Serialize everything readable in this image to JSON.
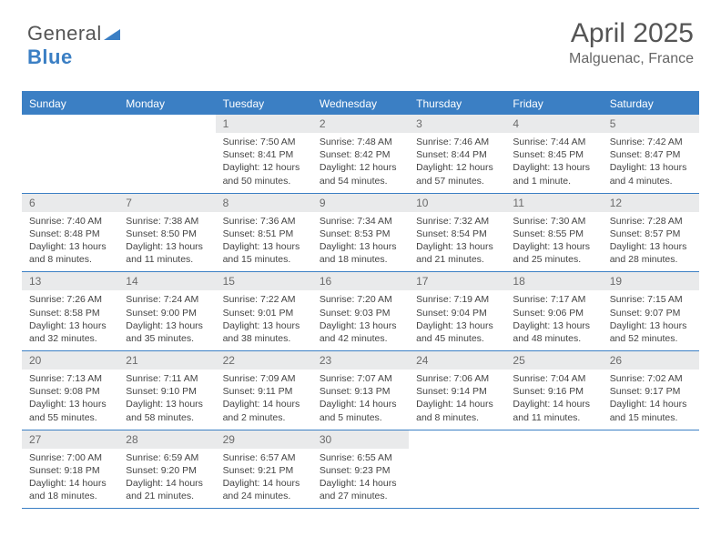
{
  "brand": {
    "part1": "General",
    "part2": "Blue"
  },
  "title": "April 2025",
  "location": "Malguenac, France",
  "colors": {
    "accent": "#3b7fc4",
    "header_bg": "#3b7fc4",
    "daynum_bg": "#e9eaeb",
    "text": "#444444",
    "title": "#555555"
  },
  "layout": {
    "columns": 7,
    "cell_body_fontsize": 10.5,
    "daynum_fontsize": 12,
    "header_fontsize": 12
  },
  "weekdays": [
    "Sunday",
    "Monday",
    "Tuesday",
    "Wednesday",
    "Thursday",
    "Friday",
    "Saturday"
  ],
  "weeks": [
    [
      {
        "n": "",
        "sunrise": "",
        "sunset": "",
        "daylight": ""
      },
      {
        "n": "",
        "sunrise": "",
        "sunset": "",
        "daylight": ""
      },
      {
        "n": "1",
        "sunrise": "Sunrise: 7:50 AM",
        "sunset": "Sunset: 8:41 PM",
        "daylight": "Daylight: 12 hours and 50 minutes."
      },
      {
        "n": "2",
        "sunrise": "Sunrise: 7:48 AM",
        "sunset": "Sunset: 8:42 PM",
        "daylight": "Daylight: 12 hours and 54 minutes."
      },
      {
        "n": "3",
        "sunrise": "Sunrise: 7:46 AM",
        "sunset": "Sunset: 8:44 PM",
        "daylight": "Daylight: 12 hours and 57 minutes."
      },
      {
        "n": "4",
        "sunrise": "Sunrise: 7:44 AM",
        "sunset": "Sunset: 8:45 PM",
        "daylight": "Daylight: 13 hours and 1 minute."
      },
      {
        "n": "5",
        "sunrise": "Sunrise: 7:42 AM",
        "sunset": "Sunset: 8:47 PM",
        "daylight": "Daylight: 13 hours and 4 minutes."
      }
    ],
    [
      {
        "n": "6",
        "sunrise": "Sunrise: 7:40 AM",
        "sunset": "Sunset: 8:48 PM",
        "daylight": "Daylight: 13 hours and 8 minutes."
      },
      {
        "n": "7",
        "sunrise": "Sunrise: 7:38 AM",
        "sunset": "Sunset: 8:50 PM",
        "daylight": "Daylight: 13 hours and 11 minutes."
      },
      {
        "n": "8",
        "sunrise": "Sunrise: 7:36 AM",
        "sunset": "Sunset: 8:51 PM",
        "daylight": "Daylight: 13 hours and 15 minutes."
      },
      {
        "n": "9",
        "sunrise": "Sunrise: 7:34 AM",
        "sunset": "Sunset: 8:53 PM",
        "daylight": "Daylight: 13 hours and 18 minutes."
      },
      {
        "n": "10",
        "sunrise": "Sunrise: 7:32 AM",
        "sunset": "Sunset: 8:54 PM",
        "daylight": "Daylight: 13 hours and 21 minutes."
      },
      {
        "n": "11",
        "sunrise": "Sunrise: 7:30 AM",
        "sunset": "Sunset: 8:55 PM",
        "daylight": "Daylight: 13 hours and 25 minutes."
      },
      {
        "n": "12",
        "sunrise": "Sunrise: 7:28 AM",
        "sunset": "Sunset: 8:57 PM",
        "daylight": "Daylight: 13 hours and 28 minutes."
      }
    ],
    [
      {
        "n": "13",
        "sunrise": "Sunrise: 7:26 AM",
        "sunset": "Sunset: 8:58 PM",
        "daylight": "Daylight: 13 hours and 32 minutes."
      },
      {
        "n": "14",
        "sunrise": "Sunrise: 7:24 AM",
        "sunset": "Sunset: 9:00 PM",
        "daylight": "Daylight: 13 hours and 35 minutes."
      },
      {
        "n": "15",
        "sunrise": "Sunrise: 7:22 AM",
        "sunset": "Sunset: 9:01 PM",
        "daylight": "Daylight: 13 hours and 38 minutes."
      },
      {
        "n": "16",
        "sunrise": "Sunrise: 7:20 AM",
        "sunset": "Sunset: 9:03 PM",
        "daylight": "Daylight: 13 hours and 42 minutes."
      },
      {
        "n": "17",
        "sunrise": "Sunrise: 7:19 AM",
        "sunset": "Sunset: 9:04 PM",
        "daylight": "Daylight: 13 hours and 45 minutes."
      },
      {
        "n": "18",
        "sunrise": "Sunrise: 7:17 AM",
        "sunset": "Sunset: 9:06 PM",
        "daylight": "Daylight: 13 hours and 48 minutes."
      },
      {
        "n": "19",
        "sunrise": "Sunrise: 7:15 AM",
        "sunset": "Sunset: 9:07 PM",
        "daylight": "Daylight: 13 hours and 52 minutes."
      }
    ],
    [
      {
        "n": "20",
        "sunrise": "Sunrise: 7:13 AM",
        "sunset": "Sunset: 9:08 PM",
        "daylight": "Daylight: 13 hours and 55 minutes."
      },
      {
        "n": "21",
        "sunrise": "Sunrise: 7:11 AM",
        "sunset": "Sunset: 9:10 PM",
        "daylight": "Daylight: 13 hours and 58 minutes."
      },
      {
        "n": "22",
        "sunrise": "Sunrise: 7:09 AM",
        "sunset": "Sunset: 9:11 PM",
        "daylight": "Daylight: 14 hours and 2 minutes."
      },
      {
        "n": "23",
        "sunrise": "Sunrise: 7:07 AM",
        "sunset": "Sunset: 9:13 PM",
        "daylight": "Daylight: 14 hours and 5 minutes."
      },
      {
        "n": "24",
        "sunrise": "Sunrise: 7:06 AM",
        "sunset": "Sunset: 9:14 PM",
        "daylight": "Daylight: 14 hours and 8 minutes."
      },
      {
        "n": "25",
        "sunrise": "Sunrise: 7:04 AM",
        "sunset": "Sunset: 9:16 PM",
        "daylight": "Daylight: 14 hours and 11 minutes."
      },
      {
        "n": "26",
        "sunrise": "Sunrise: 7:02 AM",
        "sunset": "Sunset: 9:17 PM",
        "daylight": "Daylight: 14 hours and 15 minutes."
      }
    ],
    [
      {
        "n": "27",
        "sunrise": "Sunrise: 7:00 AM",
        "sunset": "Sunset: 9:18 PM",
        "daylight": "Daylight: 14 hours and 18 minutes."
      },
      {
        "n": "28",
        "sunrise": "Sunrise: 6:59 AM",
        "sunset": "Sunset: 9:20 PM",
        "daylight": "Daylight: 14 hours and 21 minutes."
      },
      {
        "n": "29",
        "sunrise": "Sunrise: 6:57 AM",
        "sunset": "Sunset: 9:21 PM",
        "daylight": "Daylight: 14 hours and 24 minutes."
      },
      {
        "n": "30",
        "sunrise": "Sunrise: 6:55 AM",
        "sunset": "Sunset: 9:23 PM",
        "daylight": "Daylight: 14 hours and 27 minutes."
      },
      {
        "n": "",
        "sunrise": "",
        "sunset": "",
        "daylight": ""
      },
      {
        "n": "",
        "sunrise": "",
        "sunset": "",
        "daylight": ""
      },
      {
        "n": "",
        "sunrise": "",
        "sunset": "",
        "daylight": ""
      }
    ]
  ]
}
